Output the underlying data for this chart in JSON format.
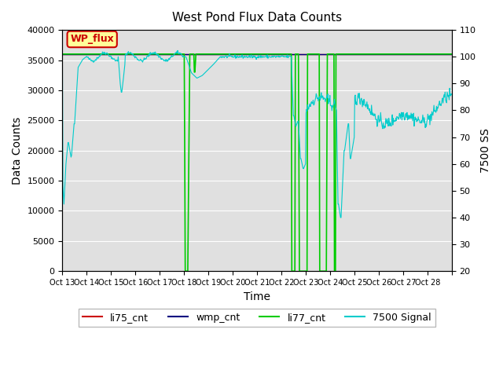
{
  "title": "West Pond Flux Data Counts",
  "xlabel": "Time",
  "ylabel_left": "Data Counts",
  "ylabel_right": "7500 SS",
  "xlim": [
    0,
    16
  ],
  "ylim_left": [
    0,
    40000
  ],
  "ylim_right": [
    20,
    110
  ],
  "xtick_positions": [
    0,
    1,
    2,
    3,
    4,
    5,
    6,
    7,
    8,
    9,
    10,
    11,
    12,
    13,
    14,
    15,
    16
  ],
  "xtick_labels": [
    "Oct 13",
    "Oct 14",
    "Oct 15",
    "Oct 16",
    "Oct 17",
    "Oct 18",
    "Oct 19",
    "Oct 20",
    "Oct 21",
    "Oct 22",
    "Oct 23",
    "Oct 24",
    "Oct 25",
    "Oct 26",
    "Oct 27",
    "Oct 28",
    ""
  ],
  "ytick_left": [
    0,
    5000,
    10000,
    15000,
    20000,
    25000,
    30000,
    35000,
    40000
  ],
  "ytick_right": [
    20,
    30,
    40,
    50,
    60,
    70,
    80,
    90,
    100,
    110
  ],
  "bg_color": "#e0e0e0",
  "box_color": "#ffff99",
  "box_text": "WP_flux",
  "box_text_color": "#cc0000",
  "box_edge_color": "#cc0000",
  "legend_entries": [
    "li75_cnt",
    "wmp_cnt",
    "li77_cnt",
    "7500 Signal"
  ],
  "legend_colors": [
    "#cc0000",
    "#000080",
    "#00cc00",
    "#00cccc"
  ],
  "li77_flat_value": 36000,
  "li75_flat_value": 36000,
  "wmp_flat_value": 36000
}
